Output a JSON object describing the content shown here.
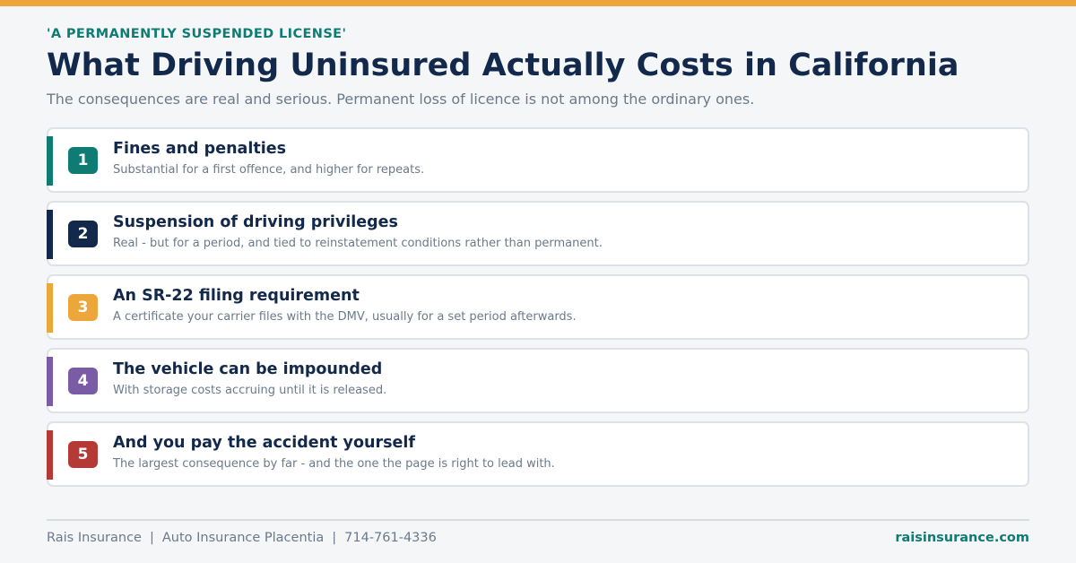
{
  "colors": {
    "top_bar": "#eca63a",
    "eyebrow": "#0f7c74",
    "title": "#13294b",
    "subtitle": "#6b7a8a",
    "card_title": "#13294b",
    "card_desc": "#6b7a8a",
    "footer_text": "#6b7a8a",
    "footer_link": "#0f7c74"
  },
  "header": {
    "eyebrow": "'A PERMANENTLY SUSPENDED LICENSE'",
    "title": "What Driving Uninsured Actually Costs in California",
    "subtitle": "The consequences are real and serious. Permanent loss of licence is not among the ordinary ones."
  },
  "items": [
    {
      "number": "1",
      "title": "Fines and penalties",
      "description": "Substantial for a first offence, and higher for repeats.",
      "color": "#0f7c74"
    },
    {
      "number": "2",
      "title": "Suspension of driving privileges",
      "description": "Real - but for a period, and tied to reinstatement conditions rather than permanent.",
      "color": "#13294b"
    },
    {
      "number": "3",
      "title": "An SR-22 filing requirement",
      "description": "A certificate your carrier files with the DMV, usually for a set period afterwards.",
      "color": "#eca63a"
    },
    {
      "number": "4",
      "title": "The vehicle can be impounded",
      "description": "With storage costs accruing until it is released.",
      "color": "#7a5ba5"
    },
    {
      "number": "5",
      "title": "And you pay the accident yourself",
      "description": "The largest consequence by far - and the one the page is right to lead with.",
      "color": "#b53a36"
    }
  ],
  "footer": {
    "company": "Rais Insurance",
    "separator": "|",
    "service": "Auto Insurance Placentia",
    "phone": "714-761-4336",
    "website": "raisinsurance.com"
  }
}
